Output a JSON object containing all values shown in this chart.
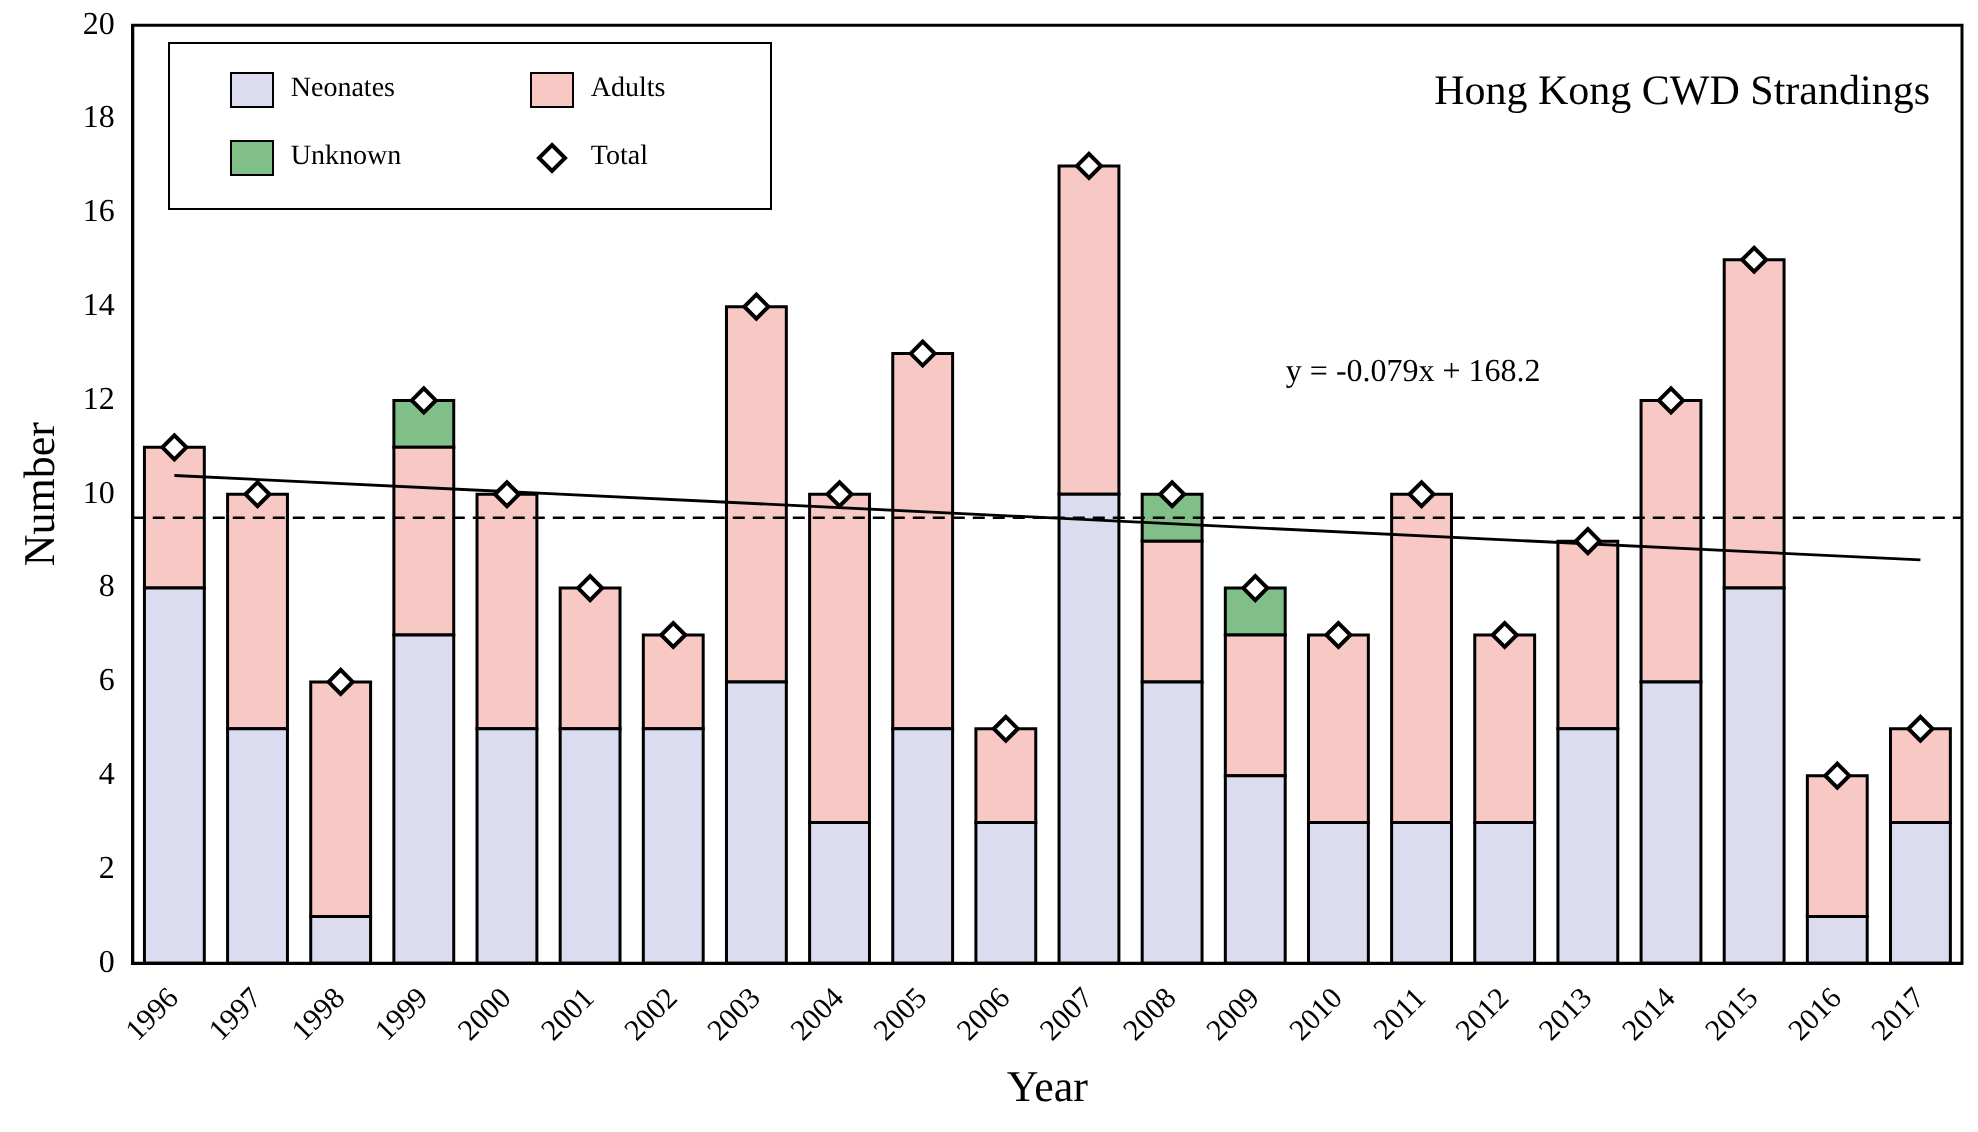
{
  "chart_data": {
    "type": "bar",
    "title": "Hong Kong CWD Strandings",
    "xlabel": "Year",
    "ylabel": "Number",
    "categories": [
      "1996",
      "1997",
      "1998",
      "1999",
      "2000",
      "2001",
      "2002",
      "2003",
      "2004",
      "2005",
      "2006",
      "2007",
      "2008",
      "2009",
      "2010",
      "2011",
      "2012",
      "2013",
      "2014",
      "2015",
      "2016",
      "2017"
    ],
    "stacked": true,
    "ylim": [
      0,
      20
    ],
    "yticks": [
      0,
      2,
      4,
      6,
      8,
      10,
      12,
      14,
      16,
      18,
      20
    ],
    "grid": false,
    "legend": "top left",
    "series": [
      {
        "name": "Neonates",
        "color": "#dcdcf0",
        "values": [
          8,
          5,
          1,
          7,
          5,
          5,
          5,
          6,
          3,
          5,
          3,
          10,
          6,
          4,
          3,
          3,
          3,
          5,
          6,
          8,
          1,
          3
        ]
      },
      {
        "name": "Adults",
        "color": "#f8c8c4",
        "values": [
          3,
          5,
          5,
          4,
          5,
          3,
          2,
          8,
          7,
          8,
          2,
          7,
          3,
          3,
          4,
          7,
          4,
          4,
          6,
          7,
          3,
          2
        ]
      },
      {
        "name": "Unknown",
        "color": "#80c088",
        "values": [
          0,
          0,
          0,
          1,
          0,
          0,
          0,
          0,
          0,
          0,
          0,
          0,
          1,
          1,
          0,
          0,
          0,
          0,
          0,
          0,
          0,
          0
        ]
      },
      {
        "name": "Total",
        "type": "scatter",
        "marker": "diamond",
        "color": "#ffffff",
        "values": [
          11,
          10,
          6,
          12,
          10,
          8,
          7,
          14,
          10,
          13,
          5,
          17,
          10,
          8,
          7,
          10,
          7,
          9,
          12,
          15,
          4,
          5
        ]
      },
      {
        "type": "line",
        "color": "#000000",
        "values": [
          10.4,
          null,
          null,
          null,
          null,
          null,
          null,
          null,
          null,
          null,
          null,
          null,
          null,
          null,
          null,
          null,
          null,
          null,
          null,
          null,
          null,
          8.6
        ]
      }
    ],
    "ref_lines": [
      {
        "axis": "y",
        "value": 9.5,
        "line_style": "dashed",
        "color": "#000000"
      }
    ],
    "annotations": [
      "y = -0.079x + 168.2"
    ]
  }
}
